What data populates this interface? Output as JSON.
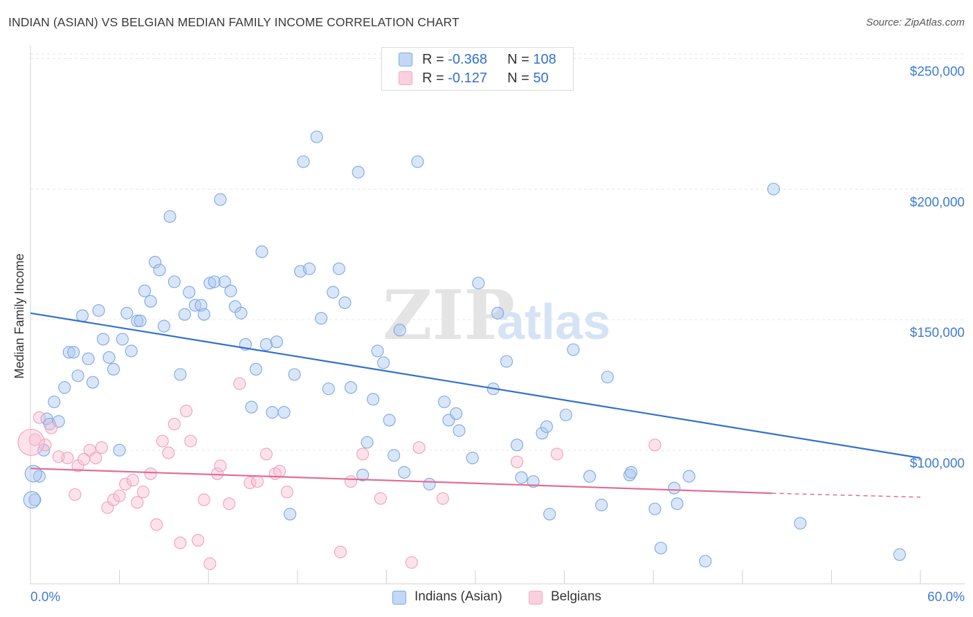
{
  "header": {
    "title": "INDIAN (ASIAN) VS BELGIAN MEDIAN FAMILY INCOME CORRELATION CHART",
    "source": "Source: ZipAtlas.com"
  },
  "legend": {
    "rows": [
      {
        "r_label": "R = ",
        "r_value": "-0.368",
        "n_label": "N = ",
        "n_value": "108"
      },
      {
        "r_label": "R = ",
        "r_value": "-0.127",
        "n_label": "N = ",
        "n_value": "50"
      }
    ]
  },
  "watermark": {
    "zip": "ZIP",
    "atlas": "atlas"
  },
  "chart_data": {
    "type": "scatter",
    "title": "INDIAN (ASIAN) VS BELGIAN MEDIAN FAMILY INCOME CORRELATION CHART",
    "xlabel": "",
    "ylabel": "Median Family Income",
    "xlim": [
      0,
      60
    ],
    "ylim": [
      52000,
      256000
    ],
    "x_tick_labels": [
      "0.0%",
      "60.0%"
    ],
    "y_ticks": [
      100000,
      150000,
      200000,
      250000
    ],
    "y_tick_labels": [
      "$100,000",
      "$150,000",
      "$200,000",
      "$250,000"
    ],
    "grid": true,
    "legend_position": "top-center",
    "series": [
      {
        "name": "Indians (Asian)",
        "color": "#7aa7e6",
        "line_color": "#2f6fd0",
        "r": -0.368,
        "n": 108,
        "trend": {
          "x0": 0,
          "y0": 152500,
          "x1": 60,
          "y1": 97000
        },
        "points": [
          [
            0.3,
            81000
          ],
          [
            0.6,
            90000
          ],
          [
            0.9,
            100000
          ],
          [
            1.1,
            112000
          ],
          [
            1.3,
            110000
          ],
          [
            1.6,
            118500
          ],
          [
            1.9,
            111000
          ],
          [
            2.3,
            124000
          ],
          [
            2.6,
            137500
          ],
          [
            2.9,
            137500
          ],
          [
            3.2,
            128500
          ],
          [
            3.5,
            151500
          ],
          [
            3.9,
            135000
          ],
          [
            4.2,
            126000
          ],
          [
            4.6,
            153500
          ],
          [
            4.9,
            142500
          ],
          [
            5.3,
            135500
          ],
          [
            5.6,
            131000
          ],
          [
            6,
            100000
          ],
          [
            6.2,
            142500
          ],
          [
            6.5,
            152500
          ],
          [
            6.8,
            138000
          ],
          [
            7.2,
            149500
          ],
          [
            7.4,
            149500
          ],
          [
            7.7,
            161000
          ],
          [
            8.1,
            157000
          ],
          [
            8.4,
            172000
          ],
          [
            8.7,
            169000
          ],
          [
            9,
            147500
          ],
          [
            9.4,
            189500
          ],
          [
            9.7,
            164500
          ],
          [
            10.1,
            129000
          ],
          [
            10.4,
            152000
          ],
          [
            10.7,
            160500
          ],
          [
            11.1,
            155500
          ],
          [
            11.5,
            155500
          ],
          [
            11.7,
            152000
          ],
          [
            12.1,
            164000
          ],
          [
            12.4,
            164500
          ],
          [
            12.8,
            196000
          ],
          [
            13.1,
            164500
          ],
          [
            13.5,
            161000
          ],
          [
            13.8,
            155000
          ],
          [
            14.2,
            152500
          ],
          [
            14.5,
            140500
          ],
          [
            14.9,
            116500
          ],
          [
            15.2,
            131000
          ],
          [
            15.6,
            176000
          ],
          [
            15.9,
            140500
          ],
          [
            16.3,
            114500
          ],
          [
            16.6,
            141500
          ],
          [
            17.1,
            114500
          ],
          [
            17.5,
            75500
          ],
          [
            17.8,
            129000
          ],
          [
            18.2,
            168500
          ],
          [
            18.4,
            210500
          ],
          [
            18.8,
            169500
          ],
          [
            19.3,
            220000
          ],
          [
            19.6,
            150500
          ],
          [
            20.1,
            123500
          ],
          [
            20.4,
            160500
          ],
          [
            20.8,
            169500
          ],
          [
            21.2,
            156500
          ],
          [
            21.6,
            124000
          ],
          [
            22.1,
            206500
          ],
          [
            22.4,
            90500
          ],
          [
            22.7,
            103000
          ],
          [
            23.1,
            119500
          ],
          [
            23.4,
            138000
          ],
          [
            23.8,
            133500
          ],
          [
            24.2,
            111500
          ],
          [
            24.5,
            98000
          ],
          [
            24.9,
            146000
          ],
          [
            25.2,
            91500
          ],
          [
            26.1,
            210500
          ],
          [
            26.9,
            87000
          ],
          [
            27.9,
            118500
          ],
          [
            28.2,
            111500
          ],
          [
            28.7,
            114000
          ],
          [
            28.9,
            107500
          ],
          [
            29.8,
            97000
          ],
          [
            30.2,
            164000
          ],
          [
            31.2,
            123500
          ],
          [
            31.5,
            152500
          ],
          [
            32.1,
            134000
          ],
          [
            32.8,
            102000
          ],
          [
            33.1,
            89500
          ],
          [
            33.9,
            88000
          ],
          [
            34.5,
            106500
          ],
          [
            34.8,
            109000
          ],
          [
            35,
            75500
          ],
          [
            36.1,
            113500
          ],
          [
            36.6,
            138500
          ],
          [
            37.7,
            90000
          ],
          [
            38.5,
            79000
          ],
          [
            38.9,
            128000
          ],
          [
            40.4,
            90500
          ],
          [
            40.5,
            91500
          ],
          [
            42.1,
            77500
          ],
          [
            42.5,
            62500
          ],
          [
            43.4,
            85500
          ],
          [
            43.6,
            79500
          ],
          [
            44.4,
            90000
          ],
          [
            45.5,
            57500
          ],
          [
            50.1,
            200000
          ],
          [
            51.9,
            72000
          ],
          [
            58.6,
            60000
          ]
        ],
        "large_points": [
          [
            0.2,
            91000
          ],
          [
            0.1,
            81000
          ]
        ]
      },
      {
        "name": "Belgians",
        "color": "#f4a9c0",
        "line_color": "#e36a94",
        "r": -0.127,
        "n": 50,
        "trend": {
          "x0": 0,
          "y0": 93000,
          "x1": 50,
          "y1": 83500
        },
        "trend_dashed_to": {
          "x": 60,
          "y": 82000
        },
        "points": [
          [
            0.3,
            104000
          ],
          [
            0.6,
            112500
          ],
          [
            1,
            102000
          ],
          [
            1.4,
            108500
          ],
          [
            1.9,
            97500
          ],
          [
            2.5,
            97000
          ],
          [
            3,
            83000
          ],
          [
            3.2,
            94000
          ],
          [
            3.6,
            96500
          ],
          [
            4,
            100000
          ],
          [
            4.4,
            97000
          ],
          [
            4.8,
            101000
          ],
          [
            5.2,
            78000
          ],
          [
            5.6,
            81000
          ],
          [
            6,
            82500
          ],
          [
            6.4,
            87000
          ],
          [
            6.9,
            88500
          ],
          [
            7.2,
            80000
          ],
          [
            7.6,
            84000
          ],
          [
            8.1,
            91000
          ],
          [
            8.5,
            71500
          ],
          [
            8.9,
            103500
          ],
          [
            9.3,
            99000
          ],
          [
            9.7,
            110000
          ],
          [
            10.1,
            64500
          ],
          [
            10.5,
            115000
          ],
          [
            10.8,
            103500
          ],
          [
            11.3,
            65500
          ],
          [
            11.7,
            81000
          ],
          [
            12.1,
            56500
          ],
          [
            12.6,
            91000
          ],
          [
            12.8,
            94000
          ],
          [
            13.4,
            79500
          ],
          [
            14.1,
            125500
          ],
          [
            14.8,
            87500
          ],
          [
            15.3,
            88000
          ],
          [
            15.9,
            98500
          ],
          [
            16.5,
            91000
          ],
          [
            16.8,
            92000
          ],
          [
            17.3,
            84000
          ],
          [
            20.9,
            61000
          ],
          [
            21.6,
            88000
          ],
          [
            22.4,
            98500
          ],
          [
            23.6,
            81500
          ],
          [
            25.7,
            57000
          ],
          [
            26.2,
            101000
          ],
          [
            27.8,
            81500
          ],
          [
            32.8,
            95500
          ],
          [
            35.5,
            98500
          ],
          [
            42.1,
            102000
          ]
        ],
        "large_points": [
          [
            0.05,
            103000
          ]
        ]
      }
    ]
  },
  "bottom_legend": [
    {
      "label": "Indians (Asian)",
      "color": "#7aa7e6"
    },
    {
      "label": "Belgians",
      "color": "#f4a9c0"
    }
  ]
}
